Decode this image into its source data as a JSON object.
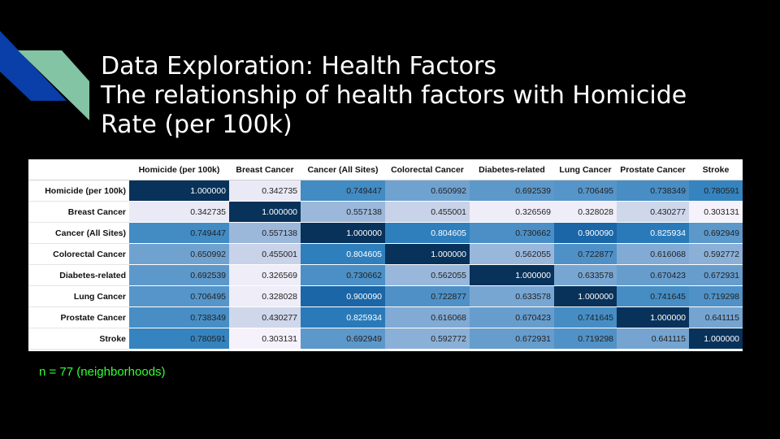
{
  "slide": {
    "title_line1": "Data Exploration: Health Factors",
    "title_line2": "The relationship of health factors with Homicide",
    "title_line3": "Rate (per 100k)",
    "footnote": "n = 77 (neighborhoods)"
  },
  "colors": {
    "background": "#000000",
    "title": "#ffffff",
    "footnote": "#33ff33",
    "deco_dark_blue": "#0a3ea8",
    "deco_teal": "#82c4a4",
    "heat_low": "#f7f3fb",
    "heat_high": "#08325a"
  },
  "chart_data": {
    "type": "heatmap",
    "rows": [
      "Homicide (per 100k)",
      "Breast Cancer",
      "Cancer (All Sites)",
      "Colorectal Cancer",
      "Diabetes-related",
      "Lung Cancer",
      "Prostate Cancer",
      "Stroke"
    ],
    "columns": [
      "Homicide (per 100k)",
      "Breast Cancer",
      "Cancer (All Sites)",
      "Colorectal Cancer",
      "Diabetes-related",
      "Lung Cancer",
      "Prostate Cancer",
      "Stroke"
    ],
    "values": [
      [
        "1.000000",
        "0.342735",
        "0.749447",
        "0.650992",
        "0.692539",
        "0.706495",
        "0.738349",
        "0.780591"
      ],
      [
        "0.342735",
        "1.000000",
        "0.557138",
        "0.455001",
        "0.326569",
        "0.328028",
        "0.430277",
        "0.303131"
      ],
      [
        "0.749447",
        "0.557138",
        "1.000000",
        "0.804605",
        "0.730662",
        "0.900090",
        "0.825934",
        "0.692949"
      ],
      [
        "0.650992",
        "0.455001",
        "0.804605",
        "1.000000",
        "0.562055",
        "0.722877",
        "0.616068",
        "0.592772"
      ],
      [
        "0.692539",
        "0.326569",
        "0.730662",
        "0.562055",
        "1.000000",
        "0.633578",
        "0.670423",
        "0.672931"
      ],
      [
        "0.706495",
        "0.328028",
        "0.900090",
        "0.722877",
        "0.633578",
        "1.000000",
        "0.741645",
        "0.719298"
      ],
      [
        "0.738349",
        "0.430277",
        "0.825934",
        "0.616068",
        "0.670423",
        "0.741645",
        "1.000000",
        "0.641115"
      ],
      [
        "0.780591",
        "0.303131",
        "0.692949",
        "0.592772",
        "0.672931",
        "0.719298",
        "0.641115",
        "1.000000"
      ]
    ],
    "color_range": [
      0.3,
      1.0
    ]
  }
}
